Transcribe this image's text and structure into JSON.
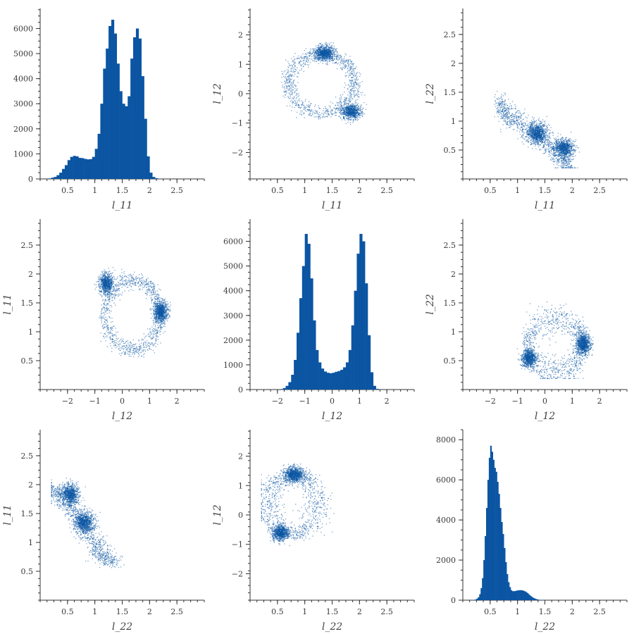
{
  "colors": {
    "accent": "#0b55a3",
    "axis": "#333333",
    "text": "#3a3a3a"
  },
  "chart_data": [
    {
      "type": "bar",
      "row": 0,
      "col": 0,
      "xlabel": "l_11",
      "ylabel": "",
      "xlim": [
        0,
        3
      ],
      "ylim": [
        0,
        6800
      ],
      "xticks": [
        "0.5",
        "1",
        "1.5",
        "2",
        "2.5"
      ],
      "xtick_values": [
        0.5,
        1,
        1.5,
        2,
        2.5
      ],
      "yticks": [
        "0",
        "1000",
        "2000",
        "3000",
        "4000",
        "5000",
        "6000"
      ],
      "ytick_values": [
        0,
        1000,
        2000,
        3000,
        4000,
        5000,
        6000
      ],
      "bins": {
        "start": 0.15,
        "width": 0.05
      },
      "values": [
        20,
        50,
        80,
        150,
        250,
        400,
        550,
        750,
        880,
        920,
        900,
        840,
        830,
        800,
        780,
        790,
        880,
        1200,
        1800,
        3000,
        4400,
        5200,
        6100,
        6350,
        5800,
        4600,
        3500,
        3000,
        2900,
        3300,
        4800,
        5650,
        6000,
        5600,
        4100,
        2400,
        900,
        250,
        80,
        30,
        10,
        0
      ]
    },
    {
      "type": "scatter",
      "row": 0,
      "col": 1,
      "xlabel": "l_11",
      "ylabel": "l_12",
      "xlim": [
        0,
        3
      ],
      "ylim": [
        -2.9,
        2.9
      ],
      "xticks": [
        "0.5",
        "1",
        "1.5",
        "2",
        "2.5"
      ],
      "xtick_values": [
        0.5,
        1,
        1.5,
        2,
        2.5
      ],
      "yticks": [
        "−2",
        "−1",
        "0",
        "1",
        "2"
      ],
      "ytick_values": [
        -2,
        -1,
        0,
        1,
        2
      ],
      "x_var": "l_11",
      "y_var": "l_12"
    },
    {
      "type": "scatter",
      "row": 0,
      "col": 2,
      "xlabel": "l_11",
      "ylabel": "l_22",
      "xlim": [
        0,
        3
      ],
      "ylim": [
        0,
        2.95
      ],
      "xticks": [
        "0.5",
        "1",
        "1.5",
        "2",
        "2.5"
      ],
      "xtick_values": [
        0.5,
        1,
        1.5,
        2,
        2.5
      ],
      "yticks": [
        "0.5",
        "1",
        "1.5",
        "2",
        "2.5"
      ],
      "ytick_values": [
        0.5,
        1,
        1.5,
        2,
        2.5
      ],
      "x_var": "l_11",
      "y_var": "l_22"
    },
    {
      "type": "scatter",
      "row": 1,
      "col": 0,
      "xlabel": "l_12",
      "ylabel": "l_11",
      "xlim": [
        -3,
        3
      ],
      "ylim": [
        0,
        2.95
      ],
      "xticks": [
        "−2",
        "−1",
        "0",
        "1",
        "2"
      ],
      "xtick_values": [
        -2,
        -1,
        0,
        1,
        2
      ],
      "yticks": [
        "0.5",
        "1",
        "1.5",
        "2",
        "2.5"
      ],
      "ytick_values": [
        0.5,
        1,
        1.5,
        2,
        2.5
      ],
      "x_var": "l_12",
      "y_var": "l_11"
    },
    {
      "type": "bar",
      "row": 1,
      "col": 1,
      "xlabel": "l_12",
      "ylabel": "",
      "xlim": [
        -3,
        3
      ],
      "ylim": [
        0,
        6900
      ],
      "xticks": [
        "−2",
        "−1",
        "0",
        "1",
        "2"
      ],
      "xtick_values": [
        -2,
        -1,
        0,
        1,
        2
      ],
      "yticks": [
        "0",
        "1000",
        "2000",
        "3000",
        "4000",
        "5000",
        "6000"
      ],
      "ytick_values": [
        0,
        1000,
        2000,
        3000,
        4000,
        5000,
        6000
      ],
      "bins": {
        "start": -1.9,
        "width": 0.1
      },
      "values": [
        20,
        60,
        150,
        300,
        600,
        1200,
        2300,
        3700,
        5000,
        6300,
        5900,
        4500,
        2800,
        1600,
        1100,
        850,
        730,
        680,
        660,
        680,
        720,
        750,
        800,
        900,
        1100,
        1600,
        2600,
        4000,
        5500,
        6300,
        6000,
        4300,
        2200,
        700,
        150,
        30,
        5
      ]
    },
    {
      "type": "scatter",
      "row": 1,
      "col": 2,
      "xlabel": "l_12",
      "ylabel": "l_22",
      "xlim": [
        -3,
        3
      ],
      "ylim": [
        0,
        2.95
      ],
      "xticks": [
        "−2",
        "−1",
        "0",
        "1",
        "2"
      ],
      "xtick_values": [
        -2,
        -1,
        0,
        1,
        2
      ],
      "yticks": [
        "0.5",
        "1",
        "1.5",
        "2",
        "2.5"
      ],
      "ytick_values": [
        0.5,
        1,
        1.5,
        2,
        2.5
      ],
      "x_var": "l_12",
      "y_var": "l_22"
    },
    {
      "type": "scatter",
      "row": 2,
      "col": 0,
      "xlabel": "l_22",
      "ylabel": "l_11",
      "xlim": [
        0,
        3
      ],
      "ylim": [
        0,
        2.95
      ],
      "xticks": [
        "0.5",
        "1",
        "1.5",
        "2",
        "2.5"
      ],
      "xtick_values": [
        0.5,
        1,
        1.5,
        2,
        2.5
      ],
      "yticks": [
        "0.5",
        "1",
        "1.5",
        "2",
        "2.5"
      ],
      "ytick_values": [
        0.5,
        1,
        1.5,
        2,
        2.5
      ],
      "x_var": "l_22",
      "y_var": "l_11"
    },
    {
      "type": "scatter",
      "row": 2,
      "col": 1,
      "xlabel": "l_22",
      "ylabel": "l_12",
      "xlim": [
        0,
        3
      ],
      "ylim": [
        -2.9,
        2.9
      ],
      "xticks": [
        "0.5",
        "1",
        "1.5",
        "2",
        "2.5"
      ],
      "xtick_values": [
        0.5,
        1,
        1.5,
        2,
        2.5
      ],
      "yticks": [
        "−2",
        "−1",
        "0",
        "1",
        "2"
      ],
      "ytick_values": [
        -2,
        -1,
        0,
        1,
        2
      ],
      "x_var": "l_22",
      "y_var": "l_12"
    },
    {
      "type": "bar",
      "row": 2,
      "col": 2,
      "xlabel": "l_22",
      "ylabel": "",
      "xlim": [
        0,
        3
      ],
      "ylim": [
        0,
        8500
      ],
      "xticks": [
        "0.5",
        "1",
        "1.5",
        "2",
        "2.5"
      ],
      "xtick_values": [
        0.5,
        1,
        1.5,
        2,
        2.5
      ],
      "yticks": [
        "0",
        "2000",
        "4000",
        "6000",
        "8000"
      ],
      "ytick_values": [
        0,
        2000,
        4000,
        6000,
        8000
      ],
      "bins": {
        "start": 0.15,
        "width": 0.025
      },
      "values": [
        5,
        10,
        20,
        40,
        80,
        150,
        300,
        600,
        1100,
        2000,
        3200,
        4600,
        6000,
        7100,
        7700,
        7400,
        7000,
        6600,
        6400,
        5900,
        5300,
        4600,
        3900,
        3300,
        2600,
        1900,
        1300,
        900,
        650,
        500,
        450,
        450,
        460,
        480,
        490,
        500,
        500,
        490,
        470,
        440,
        400,
        350,
        280,
        220,
        170,
        120,
        90,
        60,
        40,
        25,
        15,
        8,
        4,
        2
      ]
    }
  ],
  "scatter_model": {
    "note_vars": [
      "l_11",
      "l_12",
      "l_22"
    ],
    "cluster_a": {
      "l_11": 1.35,
      "l_12": 1.4,
      "l_22": 0.8
    },
    "cluster_b": {
      "l_11": 1.85,
      "l_12": -0.6,
      "l_22": 0.55
    }
  }
}
